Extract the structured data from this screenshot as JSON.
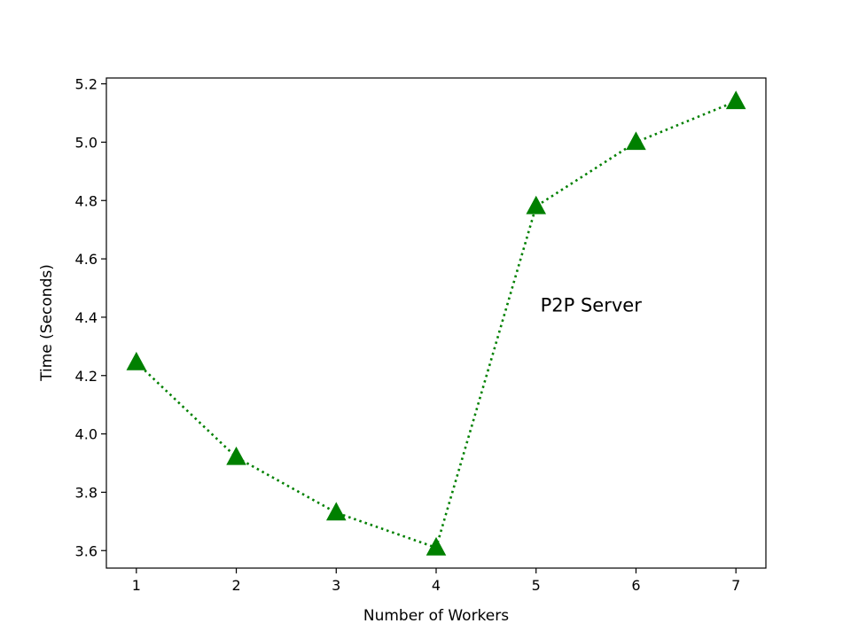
{
  "chart_data": {
    "type": "line",
    "title": "",
    "xlabel": "Number of Workers",
    "ylabel": "Time (Seconds)",
    "x": [
      1,
      2,
      3,
      4,
      5,
      6,
      7
    ],
    "series": [
      {
        "values": [
          4.245,
          3.92,
          3.73,
          3.61,
          4.78,
          5.0,
          5.14
        ],
        "color": "#008000",
        "marker": "triangle-up",
        "line_style": "dotted"
      }
    ],
    "xticks": [
      "1",
      "2",
      "3",
      "4",
      "5",
      "6",
      "7"
    ],
    "yticks": [
      "3.6",
      "3.8",
      "4.0",
      "4.2",
      "4.4",
      "4.6",
      "4.8",
      "5.0",
      "5.2"
    ],
    "xlim": [
      0.7,
      7.3
    ],
    "ylim": [
      3.54,
      5.22
    ],
    "grid": false,
    "annotation": {
      "text": "P2P Server",
      "x": 5.55,
      "y": 4.42
    }
  }
}
